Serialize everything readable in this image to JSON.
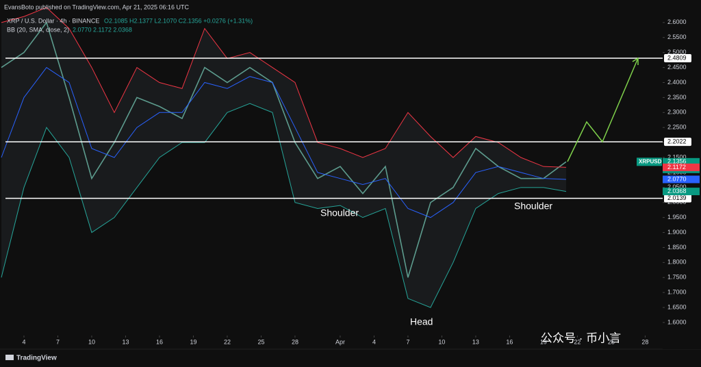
{
  "header": {
    "publisher": "EvansBoto published on TradingView.com, Apr 21, 2025 06:16 UTC",
    "symbol": "XRP / U.S. Dollar · 4h · BINANCE",
    "ohlc": "O2.1085 H2.1377 L2.1070 C2.1356 +0.0276 (+1.31%)",
    "indicator": "BB (20, SMA, close, 2)",
    "indicator_values": "2.0770 2.1172 2.0368"
  },
  "footer": {
    "brand": "TradingView"
  },
  "watermark": "公众号 · 币小言",
  "annotations": {
    "left_shoulder": "Shoulder",
    "head": "Head",
    "right_shoulder": "Shoulder"
  },
  "chart_data": {
    "type": "line",
    "grid": false,
    "xlim": [
      -2.12,
      56.55
    ],
    "ylim": [
      1.56,
      2.675
    ],
    "xticks": [
      {
        "value": 0,
        "label": "4"
      },
      {
        "value": 3,
        "label": "7"
      },
      {
        "value": 6,
        "label": "10"
      },
      {
        "value": 9,
        "label": "13"
      },
      {
        "value": 12,
        "label": "16"
      },
      {
        "value": 15,
        "label": "19"
      },
      {
        "value": 18,
        "label": "22"
      },
      {
        "value": 21,
        "label": "25"
      },
      {
        "value": 24,
        "label": "28"
      },
      {
        "value": 28,
        "label": "Apr"
      },
      {
        "value": 31,
        "label": "4"
      },
      {
        "value": 34,
        "label": "7"
      },
      {
        "value": 37,
        "label": "10"
      },
      {
        "value": 40,
        "label": "13"
      },
      {
        "value": 43,
        "label": "16"
      },
      {
        "value": 46,
        "label": "19"
      },
      {
        "value": 49,
        "label": "22"
      },
      {
        "value": 52,
        "label": "25"
      },
      {
        "value": 55,
        "label": "28"
      }
    ],
    "yticks": [
      {
        "value": 1.6,
        "label": "1.6000"
      },
      {
        "value": 1.65,
        "label": "1.6500"
      },
      {
        "value": 1.7,
        "label": "1.7000"
      },
      {
        "value": 1.75,
        "label": "1.7500"
      },
      {
        "value": 1.8,
        "label": "1.8000"
      },
      {
        "value": 1.85,
        "label": "1.8500"
      },
      {
        "value": 1.9,
        "label": "1.9000"
      },
      {
        "value": 1.95,
        "label": "1.9500"
      },
      {
        "value": 2.0,
        "label": "2.0000"
      },
      {
        "value": 2.05,
        "label": "2.0500"
      },
      {
        "value": 2.1,
        "label": "2.1000"
      },
      {
        "value": 2.15,
        "label": "2.1500"
      },
      {
        "value": 2.2,
        "label": "2.2000"
      },
      {
        "value": 2.25,
        "label": "2.2500"
      },
      {
        "value": 2.3,
        "label": "2.3000"
      },
      {
        "value": 2.35,
        "label": "2.3500"
      },
      {
        "value": 2.4,
        "label": "2.4000"
      },
      {
        "value": 2.45,
        "label": "2.4500"
      },
      {
        "value": 2.5,
        "label": "2.5000"
      },
      {
        "value": 2.55,
        "label": "2.5500"
      },
      {
        "value": 2.6,
        "label": "2.6000"
      }
    ],
    "x": [
      -2,
      0,
      2,
      4,
      6,
      8,
      10,
      12,
      14,
      16,
      18,
      20,
      22,
      24,
      26,
      28,
      30,
      32,
      34,
      36,
      38,
      40,
      42,
      44,
      46,
      48
    ],
    "series": [
      {
        "name": "XRPUSD",
        "color": "#5d9c8e",
        "values": [
          2.45,
          2.5,
          2.6,
          2.35,
          2.08,
          2.2,
          2.35,
          2.32,
          2.28,
          2.45,
          2.4,
          2.45,
          2.4,
          2.2,
          2.08,
          2.12,
          2.03,
          2.12,
          1.75,
          2.0,
          2.05,
          2.18,
          2.12,
          2.08,
          2.08,
          2.1356
        ]
      },
      {
        "name": "Upper",
        "color": "#f23645",
        "values": [
          2.6,
          2.62,
          2.65,
          2.58,
          2.45,
          2.3,
          2.45,
          2.4,
          2.38,
          2.58,
          2.48,
          2.5,
          2.45,
          2.4,
          2.2,
          2.18,
          2.15,
          2.18,
          2.3,
          2.22,
          2.15,
          2.22,
          2.2,
          2.15,
          2.12,
          2.1172
        ]
      },
      {
        "name": "Basis",
        "color": "#2962ff",
        "values": [
          2.15,
          2.35,
          2.45,
          2.4,
          2.18,
          2.15,
          2.25,
          2.3,
          2.3,
          2.4,
          2.38,
          2.42,
          2.4,
          2.25,
          2.1,
          2.08,
          2.06,
          2.08,
          1.98,
          1.95,
          2.0,
          2.1,
          2.12,
          2.1,
          2.08,
          2.077
        ]
      },
      {
        "name": "Lower",
        "color": "#26a69a",
        "values": [
          1.75,
          2.05,
          2.25,
          2.15,
          1.9,
          1.95,
          2.05,
          2.15,
          2.2,
          2.2,
          2.3,
          2.33,
          2.3,
          2.0,
          1.98,
          1.99,
          1.95,
          1.98,
          1.68,
          1.65,
          1.8,
          1.98,
          2.03,
          2.05,
          2.05,
          2.0368
        ]
      }
    ],
    "levels": [
      2.4809,
      2.2022,
      2.0139
    ],
    "price_tags": [
      {
        "symbol": "XRPUSD",
        "value": 2.1356,
        "countdown": "01:43:38",
        "color": "#089981"
      },
      {
        "value": 2.1172,
        "color": "#f23645"
      },
      {
        "value": 2.077,
        "label": "2.0770",
        "color": "#2962ff"
      },
      {
        "value": 2.0368,
        "color": "#089981"
      }
    ]
  }
}
